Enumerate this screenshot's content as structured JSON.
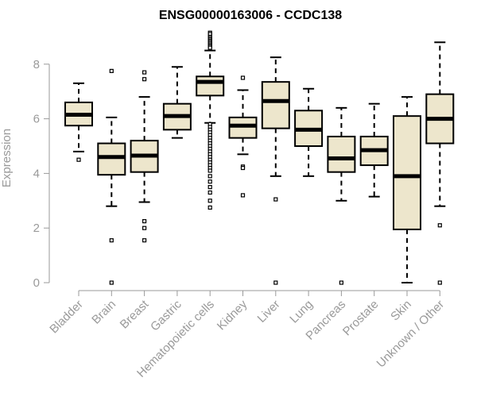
{
  "chart_data": {
    "type": "boxplot",
    "title": "ENSG00000163006 - CCDC138",
    "xlabel": "",
    "ylabel": "Expression",
    "ylim": [
      0,
      9.2
    ],
    "yticks": [
      "0",
      "2",
      "4",
      "6",
      "8"
    ],
    "box_color": "#ede6cc",
    "categories": [
      "Bladder",
      "Brain",
      "Breast",
      "Gastric",
      "Hematopoietic cells",
      "Kidney",
      "Liver",
      "Lung",
      "Pancreas",
      "Prostate",
      "Skin",
      "Unknown / Other"
    ],
    "boxes": [
      {
        "q1": 5.75,
        "median": 6.15,
        "q3": 6.6,
        "lw": 4.8,
        "uw": 7.3,
        "outliers": [
          4.5
        ]
      },
      {
        "q1": 3.95,
        "median": 4.6,
        "q3": 5.1,
        "lw": 2.8,
        "uw": 6.05,
        "outliers": [
          7.75,
          1.55,
          0.0
        ]
      },
      {
        "q1": 4.05,
        "median": 4.65,
        "q3": 5.2,
        "lw": 2.95,
        "uw": 6.8,
        "outliers": [
          7.7,
          7.45,
          2.25,
          2.0,
          1.55
        ]
      },
      {
        "q1": 5.6,
        "median": 6.1,
        "q3": 6.55,
        "lw": 5.3,
        "uw": 7.9,
        "outliers": []
      },
      {
        "q1": 6.85,
        "median": 7.35,
        "q3": 7.55,
        "lw": 5.85,
        "uw": 8.5,
        "outliers": [
          9.15,
          9.1,
          9.0,
          8.95,
          8.9,
          8.85,
          8.8,
          8.75,
          8.7,
          8.65,
          8.6,
          5.8,
          5.7,
          5.6,
          5.5,
          5.4,
          5.3,
          5.2,
          5.1,
          5.0,
          4.9,
          4.8,
          4.7,
          4.6,
          4.5,
          4.4,
          4.3,
          4.2,
          4.1,
          3.9,
          3.7,
          3.5,
          3.3,
          3.0,
          2.75
        ]
      },
      {
        "q1": 5.3,
        "median": 5.75,
        "q3": 6.05,
        "lw": 4.7,
        "uw": 7.05,
        "outliers": [
          7.5,
          4.25,
          4.2,
          3.2
        ]
      },
      {
        "q1": 5.65,
        "median": 6.65,
        "q3": 7.35,
        "lw": 3.9,
        "uw": 8.25,
        "outliers": [
          3.05,
          0.0
        ]
      },
      {
        "q1": 5.0,
        "median": 5.6,
        "q3": 6.3,
        "lw": 3.9,
        "uw": 7.1,
        "outliers": []
      },
      {
        "q1": 4.05,
        "median": 4.55,
        "q3": 5.35,
        "lw": 3.0,
        "uw": 6.4,
        "outliers": [
          0.0
        ]
      },
      {
        "q1": 4.3,
        "median": 4.85,
        "q3": 5.35,
        "lw": 3.15,
        "uw": 6.55,
        "outliers": []
      },
      {
        "q1": 1.95,
        "median": 3.9,
        "q3": 6.1,
        "lw": 0.0,
        "uw": 6.8,
        "outliers": []
      },
      {
        "q1": 5.1,
        "median": 6.0,
        "q3": 6.9,
        "lw": 2.8,
        "uw": 8.8,
        "outliers": [
          2.1,
          0.0
        ]
      }
    ]
  }
}
